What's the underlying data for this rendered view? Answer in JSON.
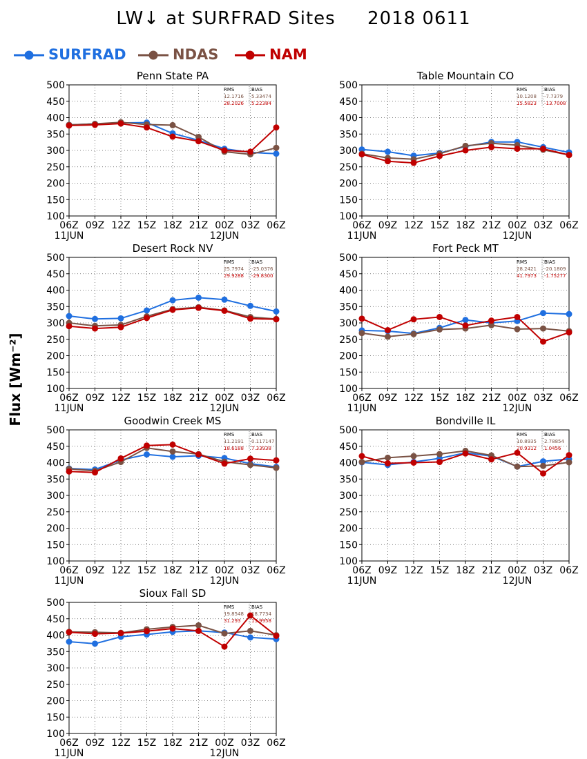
{
  "header": {
    "title": "LW↓ at SURFRAD Sites     2018 0611"
  },
  "legend": [
    {
      "label": "SURFRAD",
      "color": "#1f6fe0"
    },
    {
      "label": "NDAS",
      "color": "#7a5244"
    },
    {
      "label": "NAM",
      "color": "#c00000"
    }
  ],
  "ylabel": "Flux [Wm⁻²]",
  "x_ticks": [
    "06Z",
    "09Z",
    "12Z",
    "15Z",
    "18Z",
    "21Z",
    "00Z",
    "03Z",
    "06Z"
  ],
  "date_labels": {
    "start": "11JUN",
    "mid": "12JUN"
  },
  "chart_data": [
    {
      "type": "line",
      "title": "Penn State PA",
      "ylim": [
        100,
        500
      ],
      "yticks": [
        100,
        150,
        200,
        250,
        300,
        350,
        400,
        450,
        500
      ],
      "grid": true,
      "stats": {
        "rms_label": "RMS",
        "bias_label": "BIAS",
        "ndas": {
          "rms": "12.1716",
          "bias": "5.33474"
        },
        "nam": {
          "rms": "28.2026",
          "bias": "5.22384"
        }
      },
      "series": [
        {
          "name": "SURFRAD",
          "values": [
            378,
            381,
            384,
            385,
            352,
            331,
            305,
            294,
            290
          ]
        },
        {
          "name": "NDAS",
          "values": [
            378,
            381,
            386,
            379,
            377,
            341,
            296,
            288,
            308
          ]
        },
        {
          "name": "NAM",
          "values": [
            376,
            378,
            382,
            370,
            342,
            328,
            300,
            296,
            370
          ]
        }
      ]
    },
    {
      "type": "line",
      "title": "Table Mountain CO",
      "ylim": [
        100,
        500
      ],
      "yticks": [
        100,
        150,
        200,
        250,
        300,
        350,
        400,
        450,
        500
      ],
      "grid": true,
      "stats": {
        "rms_label": "RMS",
        "bias_label": "BIAS",
        "ndas": {
          "rms": "10.1208",
          "bias": "-7.7379"
        },
        "nam": {
          "rms": "15.5823",
          "bias": "-13.7008"
        }
      },
      "series": [
        {
          "name": "SURFRAD",
          "values": [
            303,
            296,
            284,
            292,
            312,
            326,
            326,
            310,
            294
          ]
        },
        {
          "name": "NDAS",
          "values": [
            290,
            277,
            273,
            290,
            314,
            322,
            316,
            302,
            286
          ]
        },
        {
          "name": "NAM",
          "values": [
            288,
            267,
            262,
            283,
            300,
            310,
            305,
            305,
            286
          ]
        }
      ]
    },
    {
      "type": "line",
      "title": "Desert Rock NV",
      "ylim": [
        100,
        500
      ],
      "yticks": [
        100,
        150,
        200,
        250,
        300,
        350,
        400,
        450,
        500
      ],
      "grid": true,
      "stats": {
        "rms_label": "RMS",
        "bias_label": "BIAS",
        "ndas": {
          "rms": "25.7974",
          "bias": "-25.0376"
        },
        "nam": {
          "rms": "29.9288",
          "bias": "-29.8300"
        }
      },
      "series": [
        {
          "name": "SURFRAD",
          "values": [
            321,
            312,
            314,
            338,
            369,
            377,
            371,
            352,
            335
          ]
        },
        {
          "name": "NDAS",
          "values": [
            300,
            291,
            294,
            320,
            342,
            348,
            338,
            318,
            312
          ]
        },
        {
          "name": "NAM",
          "values": [
            290,
            283,
            287,
            315,
            340,
            346,
            337,
            313,
            311
          ]
        }
      ]
    },
    {
      "type": "line",
      "title": "Fort Peck MT",
      "ylim": [
        100,
        500
      ],
      "yticks": [
        100,
        150,
        200,
        250,
        300,
        350,
        400,
        450,
        500
      ],
      "grid": true,
      "stats": {
        "rms_label": "RMS",
        "bias_label": "BIAS",
        "ndas": {
          "rms": "28.2421",
          "bias": "-20.1809"
        },
        "nam": {
          "rms": "41.7973",
          "bias": "-1.75277"
        }
      },
      "series": [
        {
          "name": "SURFRAD",
          "values": [
            277,
            275,
            268,
            285,
            309,
            300,
            306,
            330,
            327
          ]
        },
        {
          "name": "NDAS",
          "values": [
            269,
            258,
            266,
            280,
            283,
            293,
            281,
            283,
            275
          ]
        },
        {
          "name": "NAM",
          "values": [
            313,
            278,
            311,
            318,
            292,
            307,
            318,
            243,
            271
          ]
        }
      ]
    },
    {
      "type": "line",
      "title": "Goodwin Creek MS",
      "ylim": [
        100,
        500
      ],
      "yticks": [
        100,
        150,
        200,
        250,
        300,
        350,
        400,
        450,
        500
      ],
      "grid": true,
      "stats": {
        "rms_label": "RMS",
        "bias_label": "BIAS",
        "ndas": {
          "rms": "11.2191",
          "bias": "0.117147"
        },
        "nam": {
          "rms": "18.6188",
          "bias": "7.33938"
        }
      },
      "series": [
        {
          "name": "SURFRAD",
          "values": [
            382,
            379,
            408,
            425,
            418,
            421,
            414,
            397,
            387
          ]
        },
        {
          "name": "NDAS",
          "values": [
            381,
            375,
            402,
            445,
            434,
            426,
            403,
            393,
            384
          ]
        },
        {
          "name": "NAM",
          "values": [
            373,
            370,
            413,
            452,
            455,
            425,
            397,
            412,
            407
          ]
        }
      ]
    },
    {
      "type": "line",
      "title": "Bondville IL",
      "ylim": [
        100,
        500
      ],
      "yticks": [
        100,
        150,
        200,
        250,
        300,
        350,
        400,
        450,
        500
      ],
      "grid": true,
      "stats": {
        "rms_label": "RMS",
        "bias_label": "BIAS",
        "ndas": {
          "rms": "10.8935",
          "bias": "2.78854"
        },
        "nam": {
          "rms": "20.9312",
          "bias": "1.0456"
        }
      },
      "series": [
        {
          "name": "SURFRAD",
          "values": [
            401,
            393,
            402,
            413,
            430,
            420,
            388,
            404,
            411
          ]
        },
        {
          "name": "NDAS",
          "values": [
            402,
            415,
            420,
            426,
            436,
            422,
            388,
            390,
            401
          ]
        },
        {
          "name": "NAM",
          "values": [
            420,
            398,
            400,
            402,
            428,
            410,
            430,
            367,
            423
          ]
        }
      ]
    },
    {
      "type": "line",
      "title": "Sioux Fall SD",
      "ylim": [
        100,
        500
      ],
      "yticks": [
        100,
        150,
        200,
        250,
        300,
        350,
        400,
        450,
        500
      ],
      "grid": true,
      "stats": {
        "rms_label": "RMS",
        "bias_label": "BIAS",
        "ndas": {
          "rms": "19.8548",
          "bias": "18.7734"
        },
        "nam": {
          "rms": "31.293",
          "bias": "15.9958"
        }
      },
      "series": [
        {
          "name": "SURFRAD",
          "values": [
            380,
            374,
            395,
            402,
            410,
            413,
            408,
            393,
            388
          ]
        },
        {
          "name": "NDAS",
          "values": [
            410,
            409,
            407,
            418,
            425,
            430,
            405,
            413,
            400
          ]
        },
        {
          "name": "NAM",
          "values": [
            409,
            404,
            406,
            412,
            420,
            413,
            365,
            460,
            398
          ]
        }
      ]
    }
  ]
}
